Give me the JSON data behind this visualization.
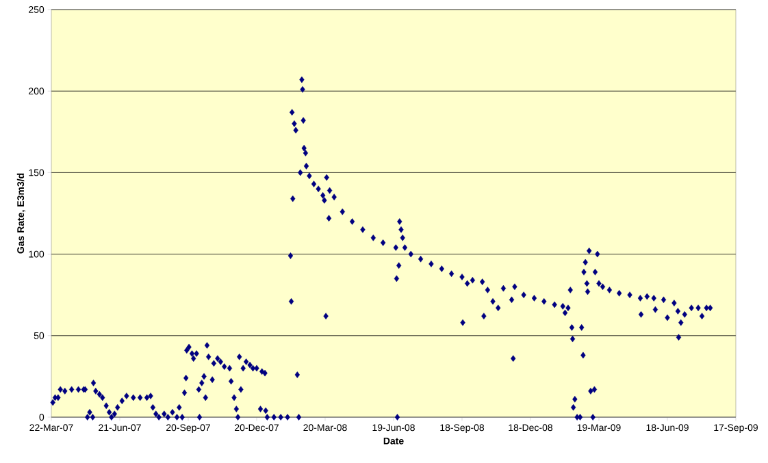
{
  "chart_data": {
    "type": "scatter",
    "xlabel": "Date",
    "ylabel": "Gas Rate, E3m3/d",
    "xlim": [
      "2007-03-22",
      "2009-09-17"
    ],
    "ylim": [
      0,
      250
    ],
    "yticks": [
      0,
      50,
      100,
      150,
      200,
      250
    ],
    "xticks": [
      {
        "value": "2007-03-22",
        "label": "22-Mar-07"
      },
      {
        "value": "2007-06-21",
        "label": "21-Jun-07"
      },
      {
        "value": "2007-09-20",
        "label": "20-Sep-07"
      },
      {
        "value": "2007-12-20",
        "label": "20-Dec-07"
      },
      {
        "value": "2008-03-20",
        "label": "20-Mar-08"
      },
      {
        "value": "2008-06-19",
        "label": "19-Jun-08"
      },
      {
        "value": "2008-09-18",
        "label": "18-Sep-08"
      },
      {
        "value": "2008-12-18",
        "label": "18-Dec-08"
      },
      {
        "value": "2009-03-19",
        "label": "19-Mar-09"
      },
      {
        "value": "2009-06-18",
        "label": "18-Jun-09"
      },
      {
        "value": "2009-09-17",
        "label": "17-Sep-09"
      }
    ],
    "grid": "y",
    "marker": "diamond",
    "series": [
      {
        "color": "#000080",
        "x": [
          "2007-03-24",
          "2007-03-27",
          "2007-03-31",
          "2007-04-03",
          "2007-04-09",
          "2007-04-18",
          "2007-04-27",
          "2007-05-04",
          "2007-05-06",
          "2007-05-09",
          "2007-05-12",
          "2007-05-16",
          "2007-05-17",
          "2007-05-20",
          "2007-05-25",
          "2007-05-29",
          "2007-06-03",
          "2007-06-07",
          "2007-06-10",
          "2007-06-14",
          "2007-06-18",
          "2007-06-24",
          "2007-06-30",
          "2007-07-09",
          "2007-07-18",
          "2007-07-27",
          "2007-08-01",
          "2007-08-04",
          "2007-08-08",
          "2007-08-12",
          "2007-08-19",
          "2007-08-24",
          "2007-08-30",
          "2007-09-05",
          "2007-09-08",
          "2007-09-12",
          "2007-09-15",
          "2007-09-17",
          "2007-09-18",
          "2007-09-21",
          "2007-09-25",
          "2007-09-27",
          "2007-10-01",
          "2007-10-04",
          "2007-10-05",
          "2007-10-08",
          "2007-10-11",
          "2007-10-13",
          "2007-10-15",
          "2007-10-17",
          "2007-10-22",
          "2007-10-24",
          "2007-10-29",
          "2007-11-02",
          "2007-11-07",
          "2007-11-14",
          "2007-11-16",
          "2007-11-20",
          "2007-11-23",
          "2007-11-25",
          "2007-11-27",
          "2007-11-29",
          "2007-12-02",
          "2007-12-06",
          "2007-12-11",
          "2007-12-15",
          "2007-12-20",
          "2007-12-25",
          "2007-12-27",
          "2007-12-31",
          "2008-01-01",
          "2008-01-03",
          "2008-01-12",
          "2008-01-21",
          "2008-01-30",
          "2008-02-03",
          "2008-02-04",
          "2008-02-05",
          "2008-02-06",
          "2008-02-08",
          "2008-02-10",
          "2008-02-12",
          "2008-02-14",
          "2008-02-16",
          "2008-02-18",
          "2008-02-19",
          "2008-02-20",
          "2008-02-21",
          "2008-02-23",
          "2008-02-24",
          "2008-02-28",
          "2008-03-05",
          "2008-03-11",
          "2008-03-17",
          "2008-03-19",
          "2008-03-21",
          "2008-03-22",
          "2008-03-25",
          "2008-03-26",
          "2008-04-01",
          "2008-04-12",
          "2008-04-25",
          "2008-05-09",
          "2008-05-23",
          "2008-06-05",
          "2008-06-22",
          "2008-06-23",
          "2008-06-24",
          "2008-06-26",
          "2008-06-27",
          "2008-06-29",
          "2008-07-01",
          "2008-07-04",
          "2008-07-12",
          "2008-07-25",
          "2008-08-08",
          "2008-08-22",
          "2008-09-04",
          "2008-09-18",
          "2008-09-19",
          "2008-09-25",
          "2008-10-02",
          "2008-10-15",
          "2008-10-17",
          "2008-10-22",
          "2008-10-29",
          "2008-11-05",
          "2008-11-12",
          "2008-11-23",
          "2008-11-25",
          "2008-11-27",
          "2008-12-09",
          "2008-12-23",
          "2009-01-05",
          "2009-01-19",
          "2009-01-30",
          "2009-02-02",
          "2009-02-06",
          "2009-02-09",
          "2009-02-11",
          "2009-02-12",
          "2009-02-13",
          "2009-02-15",
          "2009-02-18",
          "2009-02-22",
          "2009-02-24",
          "2009-02-26",
          "2009-02-27",
          "2009-03-01",
          "2009-03-03",
          "2009-03-04",
          "2009-03-06",
          "2009-03-08",
          "2009-03-11",
          "2009-03-13",
          "2009-03-14",
          "2009-03-17",
          "2009-03-19",
          "2009-03-24",
          "2009-04-02",
          "2009-04-15",
          "2009-04-29",
          "2009-05-13",
          "2009-05-14",
          "2009-05-22",
          "2009-05-31",
          "2009-06-02",
          "2009-06-13",
          "2009-06-18",
          "2009-06-27",
          "2009-07-02",
          "2009-07-03",
          "2009-07-06",
          "2009-07-11",
          "2009-07-20",
          "2009-07-29",
          "2009-08-03",
          "2009-08-09",
          "2009-08-14"
        ],
        "values": [
          9,
          12,
          12,
          17,
          16,
          17,
          17,
          17,
          17,
          0,
          3,
          0,
          21,
          16,
          14,
          12,
          7,
          3,
          0,
          2,
          6,
          10,
          13,
          12,
          12,
          12,
          13,
          6,
          2,
          0,
          2,
          0,
          3,
          0,
          6,
          0,
          15,
          24,
          41,
          43,
          39,
          36,
          39,
          17,
          0,
          21,
          25,
          12,
          44,
          37,
          23,
          33,
          36,
          34,
          31,
          30,
          22,
          12,
          5,
          0,
          37,
          17,
          30,
          34,
          32,
          30,
          30,
          5,
          28,
          27,
          4,
          0,
          0,
          0,
          0,
          99,
          71,
          187,
          134,
          180,
          176,
          26,
          0,
          150,
          207,
          201,
          182,
          165,
          162,
          154,
          148,
          143,
          140,
          136,
          133,
          62,
          147,
          122,
          139,
          135,
          126,
          120,
          115,
          110,
          107,
          104,
          85,
          0,
          93,
          120,
          115,
          110,
          104,
          100,
          97,
          94,
          91,
          88,
          86,
          58,
          82,
          84,
          83,
          62,
          78,
          71,
          67,
          79,
          72,
          36,
          80,
          75,
          73,
          71,
          69,
          68,
          64,
          67,
          78,
          55,
          48,
          6,
          11,
          0,
          0,
          55,
          38,
          89,
          95,
          82,
          77,
          102,
          16,
          0,
          17,
          89,
          100,
          82,
          80,
          78,
          76,
          75,
          73,
          63,
          74,
          73,
          66,
          72,
          61,
          70,
          65,
          49,
          58,
          63,
          67,
          67,
          62,
          67,
          67
        ]
      }
    ]
  }
}
